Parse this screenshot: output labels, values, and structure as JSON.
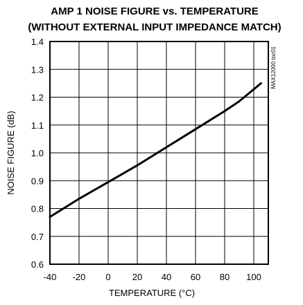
{
  "chart_data": {
    "type": "line",
    "title": "AMP 1 NOISE FIGURE vs. TEMPERATURE",
    "subtitle": "(WITHOUT EXTERNAL INPUT IMPEDANCE MATCH)",
    "xlabel": "TEMPERATURE (°C)",
    "ylabel": "NOISE FIGURE (dB)",
    "xlim": [
      -40,
      110
    ],
    "ylim": [
      0.6,
      1.4
    ],
    "xticks": [
      -40,
      -20,
      0,
      20,
      40,
      60,
      80,
      100
    ],
    "xtick_labels": [
      "-40",
      "-20",
      "0",
      "20",
      "40",
      "60",
      "80",
      "100"
    ],
    "yticks": [
      0.6,
      0.7,
      0.8,
      0.9,
      1.0,
      1.1,
      1.2,
      1.3,
      1.4
    ],
    "ytick_labels": [
      "0.6",
      "0.7",
      "0.8",
      "0.9",
      "1.0",
      "1.1",
      "1.2",
      "1.3",
      "1.4"
    ],
    "grid": true,
    "side_note": "MAX12000 toc01",
    "colors": {
      "line": "#000000",
      "grid": "#000000"
    },
    "series": [
      {
        "x": [
          -40,
          -20,
          0,
          20,
          40,
          60,
          80,
          90,
          105
        ],
        "y": [
          0.77,
          0.835,
          0.895,
          0.955,
          1.02,
          1.085,
          1.15,
          1.185,
          1.25
        ]
      }
    ]
  }
}
